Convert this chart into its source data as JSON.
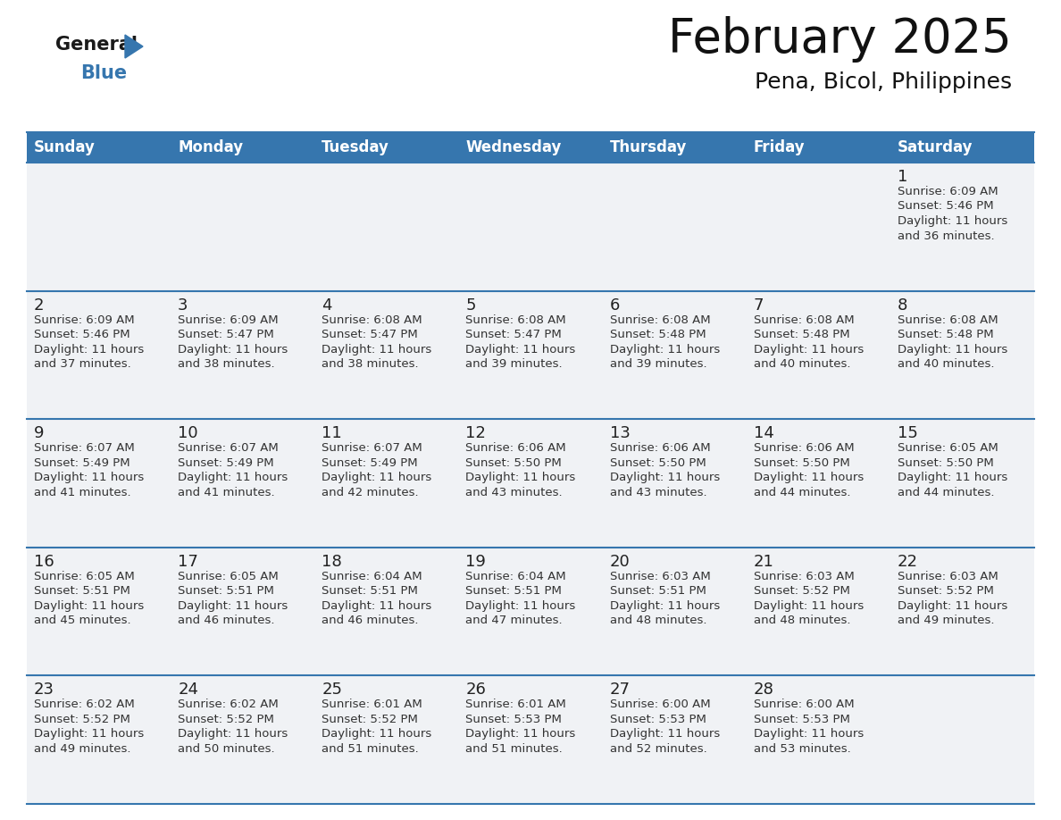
{
  "title": "February 2025",
  "subtitle": "Pena, Bicol, Philippines",
  "header_color": "#3676ae",
  "header_text_color": "#ffffff",
  "day_names": [
    "Sunday",
    "Monday",
    "Tuesday",
    "Wednesday",
    "Thursday",
    "Friday",
    "Saturday"
  ],
  "background_color": "#ffffff",
  "cell_bg": "#f0f2f5",
  "border_color": "#3676ae",
  "text_color": "#333333",
  "day_num_color": "#222222",
  "cal_data": [
    [
      null,
      null,
      null,
      null,
      null,
      null,
      {
        "day": 1,
        "sunrise": "6:09 AM",
        "sunset": "5:46 PM",
        "daylight": "11 hours and 36 minutes."
      }
    ],
    [
      {
        "day": 2,
        "sunrise": "6:09 AM",
        "sunset": "5:46 PM",
        "daylight": "11 hours and 37 minutes."
      },
      {
        "day": 3,
        "sunrise": "6:09 AM",
        "sunset": "5:47 PM",
        "daylight": "11 hours and 38 minutes."
      },
      {
        "day": 4,
        "sunrise": "6:08 AM",
        "sunset": "5:47 PM",
        "daylight": "11 hours and 38 minutes."
      },
      {
        "day": 5,
        "sunrise": "6:08 AM",
        "sunset": "5:47 PM",
        "daylight": "11 hours and 39 minutes."
      },
      {
        "day": 6,
        "sunrise": "6:08 AM",
        "sunset": "5:48 PM",
        "daylight": "11 hours and 39 minutes."
      },
      {
        "day": 7,
        "sunrise": "6:08 AM",
        "sunset": "5:48 PM",
        "daylight": "11 hours and 40 minutes."
      },
      {
        "day": 8,
        "sunrise": "6:08 AM",
        "sunset": "5:48 PM",
        "daylight": "11 hours and 40 minutes."
      }
    ],
    [
      {
        "day": 9,
        "sunrise": "6:07 AM",
        "sunset": "5:49 PM",
        "daylight": "11 hours and 41 minutes."
      },
      {
        "day": 10,
        "sunrise": "6:07 AM",
        "sunset": "5:49 PM",
        "daylight": "11 hours and 41 minutes."
      },
      {
        "day": 11,
        "sunrise": "6:07 AM",
        "sunset": "5:49 PM",
        "daylight": "11 hours and 42 minutes."
      },
      {
        "day": 12,
        "sunrise": "6:06 AM",
        "sunset": "5:50 PM",
        "daylight": "11 hours and 43 minutes."
      },
      {
        "day": 13,
        "sunrise": "6:06 AM",
        "sunset": "5:50 PM",
        "daylight": "11 hours and 43 minutes."
      },
      {
        "day": 14,
        "sunrise": "6:06 AM",
        "sunset": "5:50 PM",
        "daylight": "11 hours and 44 minutes."
      },
      {
        "day": 15,
        "sunrise": "6:05 AM",
        "sunset": "5:50 PM",
        "daylight": "11 hours and 44 minutes."
      }
    ],
    [
      {
        "day": 16,
        "sunrise": "6:05 AM",
        "sunset": "5:51 PM",
        "daylight": "11 hours and 45 minutes."
      },
      {
        "day": 17,
        "sunrise": "6:05 AM",
        "sunset": "5:51 PM",
        "daylight": "11 hours and 46 minutes."
      },
      {
        "day": 18,
        "sunrise": "6:04 AM",
        "sunset": "5:51 PM",
        "daylight": "11 hours and 46 minutes."
      },
      {
        "day": 19,
        "sunrise": "6:04 AM",
        "sunset": "5:51 PM",
        "daylight": "11 hours and 47 minutes."
      },
      {
        "day": 20,
        "sunrise": "6:03 AM",
        "sunset": "5:51 PM",
        "daylight": "11 hours and 48 minutes."
      },
      {
        "day": 21,
        "sunrise": "6:03 AM",
        "sunset": "5:52 PM",
        "daylight": "11 hours and 48 minutes."
      },
      {
        "day": 22,
        "sunrise": "6:03 AM",
        "sunset": "5:52 PM",
        "daylight": "11 hours and 49 minutes."
      }
    ],
    [
      {
        "day": 23,
        "sunrise": "6:02 AM",
        "sunset": "5:52 PM",
        "daylight": "11 hours and 49 minutes."
      },
      {
        "day": 24,
        "sunrise": "6:02 AM",
        "sunset": "5:52 PM",
        "daylight": "11 hours and 50 minutes."
      },
      {
        "day": 25,
        "sunrise": "6:01 AM",
        "sunset": "5:52 PM",
        "daylight": "11 hours and 51 minutes."
      },
      {
        "day": 26,
        "sunrise": "6:01 AM",
        "sunset": "5:53 PM",
        "daylight": "11 hours and 51 minutes."
      },
      {
        "day": 27,
        "sunrise": "6:00 AM",
        "sunset": "5:53 PM",
        "daylight": "11 hours and 52 minutes."
      },
      {
        "day": 28,
        "sunrise": "6:00 AM",
        "sunset": "5:53 PM",
        "daylight": "11 hours and 53 minutes."
      },
      null
    ]
  ]
}
